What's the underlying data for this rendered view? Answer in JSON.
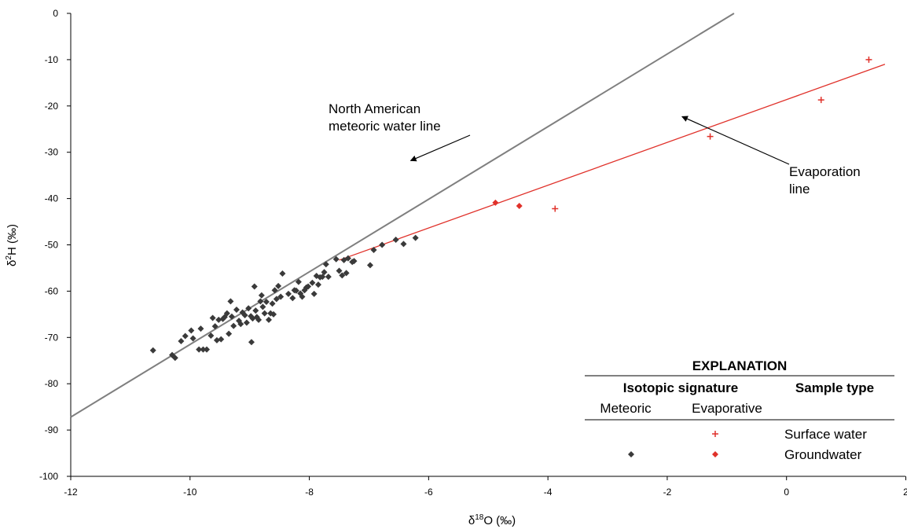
{
  "chart_data": {
    "type": "scatter",
    "xlabel": {
      "prefix": "δ",
      "sup": "18",
      "main": "O (‰)"
    },
    "ylabel": {
      "prefix": "δ",
      "sup": "2",
      "main": "H (‰)"
    },
    "xlim": [
      -12,
      2
    ],
    "ylim": [
      -100,
      0
    ],
    "x_ticks": [
      -12,
      -10,
      -8,
      -6,
      -4,
      -2,
      0,
      2
    ],
    "x_tick_labels": [
      "-12",
      "-10",
      "-8",
      "-6",
      "-4",
      "-2",
      "0",
      "2"
    ],
    "y_ticks": [
      0,
      -10,
      -20,
      -30,
      -40,
      -50,
      -60,
      -70,
      -80,
      -90,
      -100
    ],
    "y_tick_labels": [
      "0",
      "-10",
      "-20",
      "-30",
      "-40",
      "-50",
      "-60",
      "-70",
      "-80",
      "-90",
      "-100"
    ],
    "grid": false,
    "colors": {
      "meteoric": "#3a3a3a",
      "evaporative": "#e0312a",
      "gmwl_line": "#7f7f7f",
      "evap_line": "#e0312a"
    },
    "lines": [
      {
        "id": "nawl",
        "x": [
          -12,
          -0.88
        ],
        "y": [
          -87.2,
          0
        ]
      },
      {
        "id": "evap",
        "x": [
          -7.5,
          1.65
        ],
        "y": [
          -53.3,
          -11
        ]
      }
    ],
    "series": [
      {
        "id": "meteoric-gw",
        "marker": "diamond",
        "points": [
          [
            -10.62,
            -72.8
          ],
          [
            -10.3,
            -73.8
          ],
          [
            -10.25,
            -74.4
          ],
          [
            -10.15,
            -70.8
          ],
          [
            -10.08,
            -69.7
          ],
          [
            -9.98,
            -68.5
          ],
          [
            -9.95,
            -70.2
          ],
          [
            -9.85,
            -72.6
          ],
          [
            -9.82,
            -68.1
          ],
          [
            -9.78,
            -72.6
          ],
          [
            -9.72,
            -72.6
          ],
          [
            -9.65,
            -69.6
          ],
          [
            -9.62,
            -65.8
          ],
          [
            -9.58,
            -67.6
          ],
          [
            -9.55,
            -70.6
          ],
          [
            -9.52,
            -66.2
          ],
          [
            -9.48,
            -70.4
          ],
          [
            -9.45,
            -66.0
          ],
          [
            -9.42,
            -65.6
          ],
          [
            -9.38,
            -64.8
          ],
          [
            -9.35,
            -69.2
          ],
          [
            -9.32,
            -62.2
          ],
          [
            -9.3,
            -65.5
          ],
          [
            -9.27,
            -67.5
          ],
          [
            -9.22,
            -64.0
          ],
          [
            -9.18,
            -66.4
          ],
          [
            -9.15,
            -67.1
          ],
          [
            -9.12,
            -64.6
          ],
          [
            -9.08,
            -65.2
          ],
          [
            -9.05,
            -66.8
          ],
          [
            -9.02,
            -63.7
          ],
          [
            -8.98,
            -65.4
          ],
          [
            -8.97,
            -71.0
          ],
          [
            -8.95,
            -65.9
          ],
          [
            -8.92,
            -59.0
          ],
          [
            -8.9,
            -64.2
          ],
          [
            -8.88,
            -65.6
          ],
          [
            -8.85,
            -66.2
          ],
          [
            -8.82,
            -62.2
          ],
          [
            -8.8,
            -60.9
          ],
          [
            -8.78,
            -63.4
          ],
          [
            -8.75,
            -64.8
          ],
          [
            -8.72,
            -62.3
          ],
          [
            -8.68,
            -66.2
          ],
          [
            -8.65,
            -64.8
          ],
          [
            -8.62,
            -62.7
          ],
          [
            -8.6,
            -65.0
          ],
          [
            -8.58,
            -59.8
          ],
          [
            -8.55,
            -61.7
          ],
          [
            -8.52,
            -58.9
          ],
          [
            -8.48,
            -61.2
          ],
          [
            -8.45,
            -56.2
          ],
          [
            -8.35,
            -60.6
          ],
          [
            -8.28,
            -61.5
          ],
          [
            -8.25,
            -59.8
          ],
          [
            -8.22,
            -59.9
          ],
          [
            -8.18,
            -58.0
          ],
          [
            -8.15,
            -60.5
          ],
          [
            -8.12,
            -61.2
          ],
          [
            -8.08,
            -59.8
          ],
          [
            -8.05,
            -59.2
          ],
          [
            -8.02,
            -59.0
          ],
          [
            -7.95,
            -58.2
          ],
          [
            -7.92,
            -60.6
          ],
          [
            -7.88,
            -56.7
          ],
          [
            -7.85,
            -58.6
          ],
          [
            -7.82,
            -57.0
          ],
          [
            -7.78,
            -56.9
          ],
          [
            -7.75,
            -55.9
          ],
          [
            -7.72,
            -54.2
          ],
          [
            -7.68,
            -56.9
          ],
          [
            -7.55,
            -53.1
          ],
          [
            -7.5,
            -55.6
          ],
          [
            -7.45,
            -56.6
          ],
          [
            -7.42,
            -53.3
          ],
          [
            -7.38,
            -56.1
          ],
          [
            -7.35,
            -52.9
          ],
          [
            -7.28,
            -53.7
          ],
          [
            -7.25,
            -53.5
          ],
          [
            -6.98,
            -54.4
          ],
          [
            -6.92,
            -51.1
          ],
          [
            -6.78,
            -50.0
          ],
          [
            -6.55,
            -48.9
          ],
          [
            -6.42,
            -49.8
          ],
          [
            -6.22,
            -48.5
          ]
        ]
      },
      {
        "id": "evaporative-gw",
        "marker": "diamond",
        "points": [
          [
            -4.88,
            -40.9
          ],
          [
            -4.48,
            -41.6
          ]
        ]
      },
      {
        "id": "evaporative-sw",
        "marker": "plus",
        "points": [
          [
            -3.88,
            -42.2
          ],
          [
            -1.28,
            -26.6
          ],
          [
            0.58,
            -18.7
          ],
          [
            1.38,
            -10.0
          ]
        ]
      }
    ],
    "annotations": [
      {
        "id": "nawl-label",
        "lines": [
          "North American",
          "meteoric water line"
        ],
        "target": [
          -6.3,
          -31.8
        ]
      },
      {
        "id": "evap-label",
        "lines": [
          "Evaporation",
          "line"
        ],
        "target": [
          -1.75,
          -22.3
        ]
      }
    ],
    "legend": {
      "placement": "bottom-right",
      "title": "EXPLANATION",
      "col_header_1": "Isotopic signature",
      "col_header_2": "Sample type",
      "sub_1": "Meteoric",
      "sub_2": "Evaporative",
      "row_1": "Surface water",
      "row_2": "Groundwater"
    }
  }
}
